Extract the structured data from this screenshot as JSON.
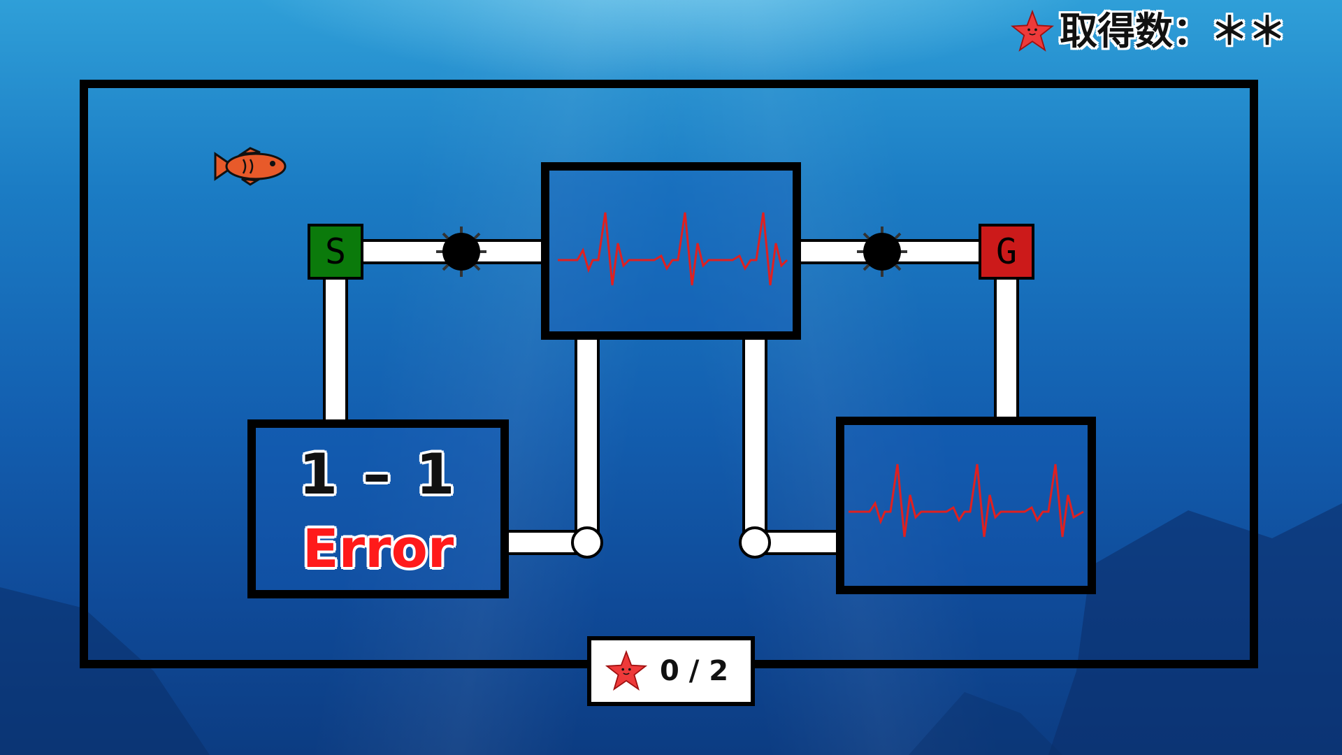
{
  "header": {
    "score_label": "取得数：＊＊",
    "icon": "starfish-icon"
  },
  "board": {
    "start_label": "S",
    "goal_label": "G"
  },
  "stage": {
    "number": "1 – 1",
    "status": "Error"
  },
  "counter": {
    "collected": "0 / 2",
    "icon": "starfish-icon"
  },
  "colors": {
    "start": "#0b7a0b",
    "goal": "#cc1a1a",
    "heartbeat": "#e02020",
    "status": "#ff1a1a"
  }
}
